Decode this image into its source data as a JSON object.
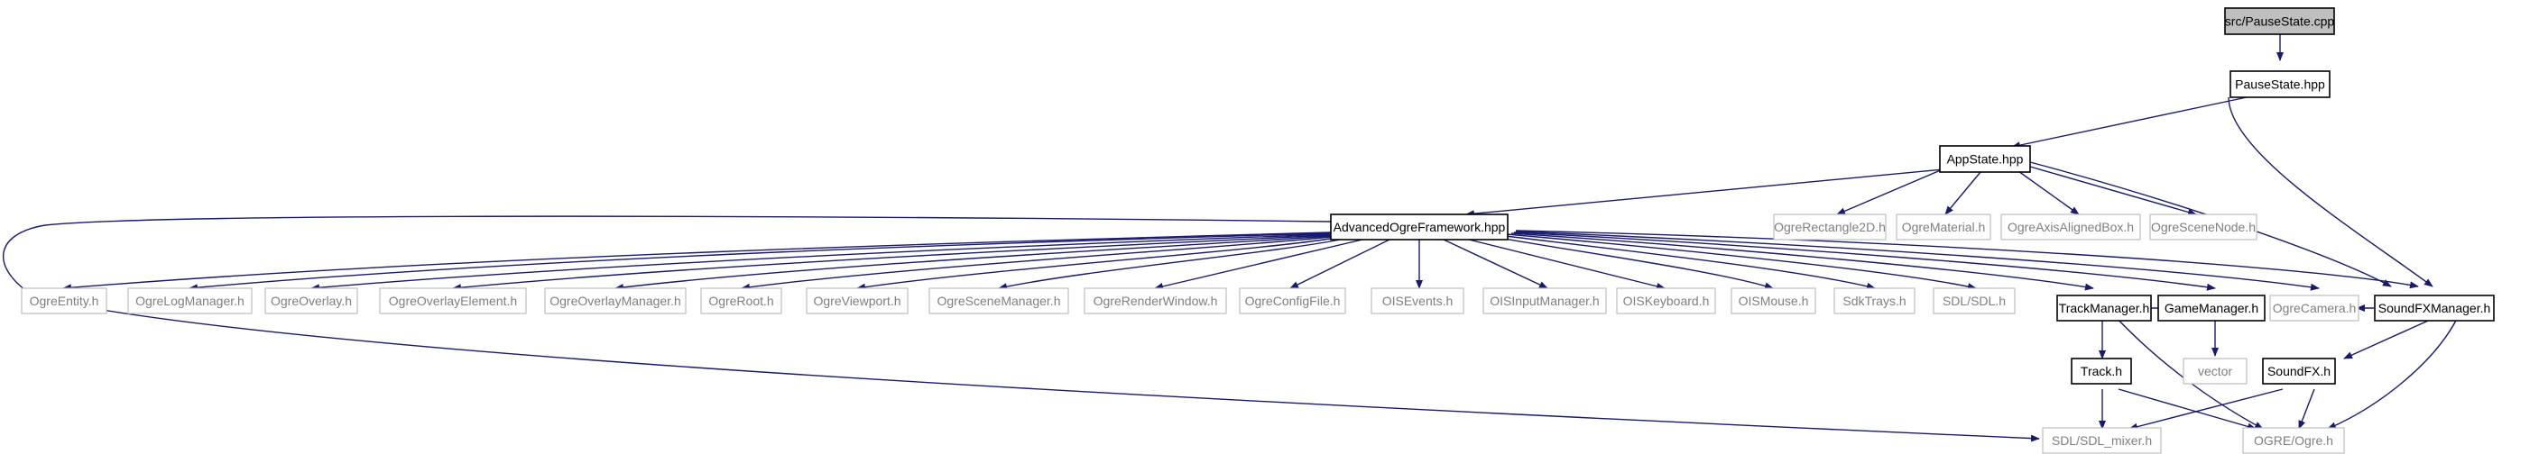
{
  "graph": {
    "edge_color": "#191970",
    "nodes": {
      "pausestate_cpp": "src/PauseState.cpp",
      "pausestate_hpp": "PauseState.hpp",
      "appstate_hpp": "AppState.hpp",
      "soundfxmanager_h": "SoundFXManager.h",
      "advancedogreframework_hpp": "AdvancedOgreFramework.hpp",
      "ogrerectangle2d_h": "OgreRectangle2D.h",
      "ogrematerial_h": "OgreMaterial.h",
      "ogreaxisalignedbox_h": "OgreAxisAlignedBox.h",
      "ogrescenenode_h": "OgreSceneNode.h",
      "ogreentity_h": "OgreEntity.h",
      "ogrelogmanager_h": "OgreLogManager.h",
      "ogreoverlay_h": "OgreOverlay.h",
      "ogreoverlayelement_h": "OgreOverlayElement.h",
      "ogreoverlaymanager_h": "OgreOverlayManager.h",
      "ogreroot_h": "OgreRoot.h",
      "ogreviewport_h": "OgreViewport.h",
      "ogrescenemanager_h": "OgreSceneManager.h",
      "ogrerenderwindow_h": "OgreRenderWindow.h",
      "ogreconfigfile_h": "OgreConfigFile.h",
      "oisevents_h": "OISEvents.h",
      "oisinputmanager_h": "OISInputManager.h",
      "oiskeyboard_h": "OISKeyboard.h",
      "oismouse_h": "OISMouse.h",
      "sdktrays_h": "SdkTrays.h",
      "sdl_sdl_h": "SDL/SDL.h",
      "trackmanager_h": "TrackManager.h",
      "gamemanager_h": "GameManager.h",
      "ogrecamera_h": "OgreCamera.h",
      "soundfx_h": "SoundFX.h",
      "track_h": "Track.h",
      "vector": "vector",
      "sdl_sdl_mixer_h": "SDL/SDL_mixer.h",
      "ogre_ogre_h": "OGRE/Ogre.h"
    }
  }
}
